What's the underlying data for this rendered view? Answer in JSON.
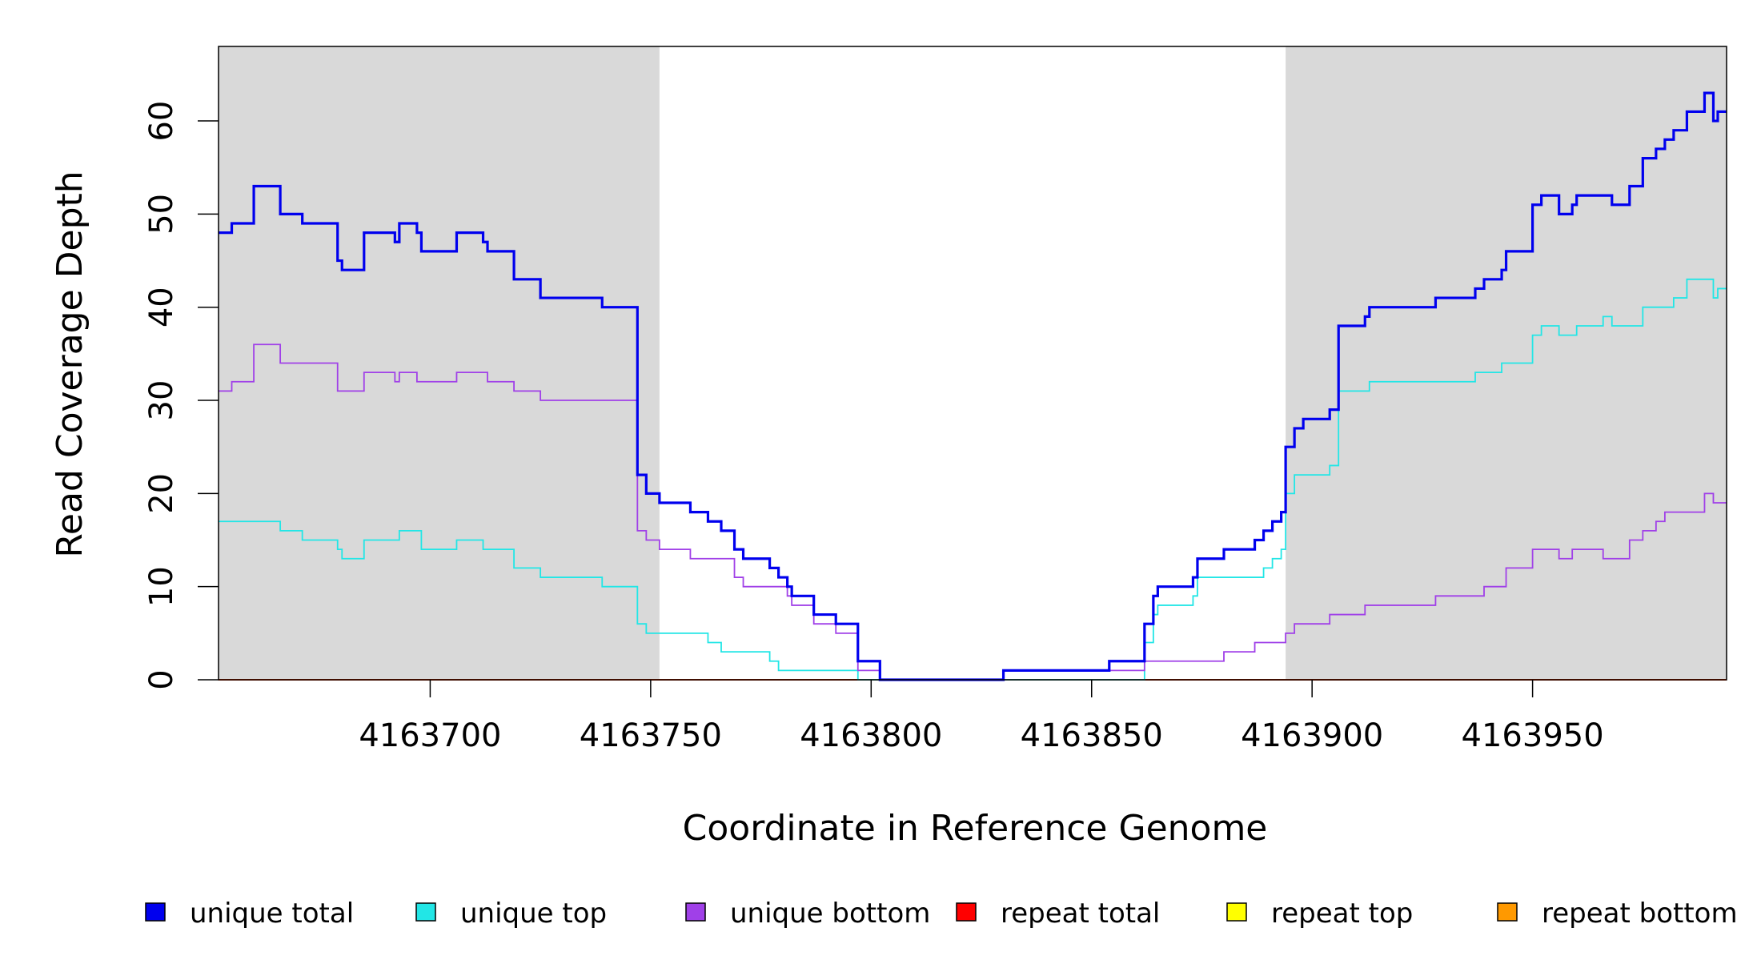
{
  "chart_data": {
    "type": "line",
    "xlabel": "Coordinate in Reference Genome",
    "ylabel": "Read Coverage Depth",
    "xlim": [
      4163652,
      4163994
    ],
    "ylim": [
      0,
      68
    ],
    "x_ticks": [
      4163700,
      4163750,
      4163800,
      4163850,
      4163900,
      4163950
    ],
    "x_tick_labels": [
      "4163700",
      "4163750",
      "4163800",
      "4163850",
      "4163900",
      "4163950"
    ],
    "y_ticks": [
      0,
      10,
      20,
      30,
      40,
      50,
      60
    ],
    "y_tick_labels": [
      "0",
      "10",
      "20",
      "30",
      "40",
      "50",
      "60"
    ],
    "shaded_regions": [
      {
        "from": 4163652,
        "to": 4163752,
        "color": "#d9d9d9"
      },
      {
        "from": 4163894,
        "to": 4163994,
        "color": "#d9d9d9"
      }
    ],
    "legend_position": "bottom",
    "series": [
      {
        "name": "unique total",
        "color": "#0000ee",
        "width": "bold",
        "steps": [
          [
            4163652,
            48
          ],
          [
            4163655,
            49
          ],
          [
            4163660,
            53
          ],
          [
            4163666,
            50
          ],
          [
            4163671,
            49
          ],
          [
            4163679,
            45
          ],
          [
            4163680,
            44
          ],
          [
            4163685,
            48
          ],
          [
            4163692,
            47
          ],
          [
            4163693,
            49
          ],
          [
            4163697,
            48
          ],
          [
            4163698,
            46
          ],
          [
            4163706,
            48
          ],
          [
            4163712,
            47
          ],
          [
            4163713,
            46
          ],
          [
            4163719,
            43
          ],
          [
            4163725,
            41
          ],
          [
            4163739,
            40
          ],
          [
            4163747,
            22
          ],
          [
            4163749,
            20
          ],
          [
            4163752,
            19
          ],
          [
            4163759,
            18
          ],
          [
            4163763,
            17
          ],
          [
            4163766,
            16
          ],
          [
            4163769,
            14
          ],
          [
            4163771,
            13
          ],
          [
            4163777,
            12
          ],
          [
            4163779,
            11
          ],
          [
            4163781,
            10
          ],
          [
            4163782,
            9
          ],
          [
            4163787,
            7
          ],
          [
            4163792,
            6
          ],
          [
            4163797,
            2
          ],
          [
            4163802,
            0
          ],
          [
            4163830,
            1
          ],
          [
            4163854,
            2
          ],
          [
            4163862,
            6
          ],
          [
            4163864,
            9
          ],
          [
            4163865,
            10
          ],
          [
            4163873,
            11
          ],
          [
            4163874,
            13
          ],
          [
            4163880,
            14
          ],
          [
            4163887,
            15
          ],
          [
            4163889,
            16
          ],
          [
            4163891,
            17
          ],
          [
            4163893,
            18
          ],
          [
            4163894,
            25
          ],
          [
            4163896,
            27
          ],
          [
            4163898,
            28
          ],
          [
            4163904,
            29
          ],
          [
            4163906,
            38
          ],
          [
            4163912,
            39
          ],
          [
            4163913,
            40
          ],
          [
            4163928,
            41
          ],
          [
            4163937,
            42
          ],
          [
            4163939,
            43
          ],
          [
            4163943,
            44
          ],
          [
            4163944,
            46
          ],
          [
            4163950,
            51
          ],
          [
            4163952,
            52
          ],
          [
            4163956,
            50
          ],
          [
            4163959,
            51
          ],
          [
            4163960,
            52
          ],
          [
            4163968,
            51
          ],
          [
            4163972,
            53
          ],
          [
            4163975,
            56
          ],
          [
            4163978,
            57
          ],
          [
            4163980,
            58
          ],
          [
            4163982,
            59
          ],
          [
            4163985,
            61
          ],
          [
            4163989,
            63
          ],
          [
            4163991,
            60
          ],
          [
            4163992,
            61
          ],
          [
            4163994,
            61
          ]
        ]
      },
      {
        "name": "unique top",
        "color": "#22e6e6",
        "width": "thin",
        "steps": [
          [
            4163652,
            17
          ],
          [
            4163666,
            16
          ],
          [
            4163671,
            15
          ],
          [
            4163679,
            14
          ],
          [
            4163680,
            13
          ],
          [
            4163685,
            15
          ],
          [
            4163693,
            16
          ],
          [
            4163698,
            14
          ],
          [
            4163706,
            15
          ],
          [
            4163712,
            14
          ],
          [
            4163719,
            12
          ],
          [
            4163725,
            11
          ],
          [
            4163739,
            10
          ],
          [
            4163747,
            6
          ],
          [
            4163749,
            5
          ],
          [
            4163763,
            4
          ],
          [
            4163766,
            3
          ],
          [
            4163777,
            2
          ],
          [
            4163779,
            1
          ],
          [
            4163797,
            0
          ],
          [
            4163862,
            4
          ],
          [
            4163864,
            7
          ],
          [
            4163865,
            8
          ],
          [
            4163873,
            9
          ],
          [
            4163874,
            11
          ],
          [
            4163889,
            12
          ],
          [
            4163891,
            13
          ],
          [
            4163893,
            14
          ],
          [
            4163894,
            20
          ],
          [
            4163896,
            22
          ],
          [
            4163904,
            23
          ],
          [
            4163906,
            31
          ],
          [
            4163913,
            32
          ],
          [
            4163937,
            33
          ],
          [
            4163943,
            34
          ],
          [
            4163950,
            37
          ],
          [
            4163952,
            38
          ],
          [
            4163956,
            37
          ],
          [
            4163960,
            38
          ],
          [
            4163966,
            39
          ],
          [
            4163968,
            38
          ],
          [
            4163975,
            40
          ],
          [
            4163982,
            41
          ],
          [
            4163985,
            43
          ],
          [
            4163991,
            41
          ],
          [
            4163992,
            42
          ],
          [
            4163994,
            42
          ]
        ]
      },
      {
        "name": "unique bottom",
        "color": "#a040e8",
        "width": "thin",
        "steps": [
          [
            4163652,
            31
          ],
          [
            4163655,
            32
          ],
          [
            4163660,
            36
          ],
          [
            4163666,
            34
          ],
          [
            4163679,
            31
          ],
          [
            4163685,
            33
          ],
          [
            4163692,
            32
          ],
          [
            4163693,
            33
          ],
          [
            4163697,
            32
          ],
          [
            4163706,
            33
          ],
          [
            4163713,
            32
          ],
          [
            4163719,
            31
          ],
          [
            4163725,
            30
          ],
          [
            4163747,
            16
          ],
          [
            4163749,
            15
          ],
          [
            4163752,
            14
          ],
          [
            4163759,
            13
          ],
          [
            4163769,
            11
          ],
          [
            4163771,
            10
          ],
          [
            4163781,
            9
          ],
          [
            4163782,
            8
          ],
          [
            4163787,
            6
          ],
          [
            4163792,
            5
          ],
          [
            4163797,
            1
          ],
          [
            4163802,
            0
          ],
          [
            4163830,
            1
          ],
          [
            4163862,
            2
          ],
          [
            4163880,
            3
          ],
          [
            4163887,
            4
          ],
          [
            4163894,
            5
          ],
          [
            4163896,
            6
          ],
          [
            4163904,
            7
          ],
          [
            4163912,
            8
          ],
          [
            4163928,
            9
          ],
          [
            4163939,
            10
          ],
          [
            4163944,
            12
          ],
          [
            4163950,
            14
          ],
          [
            4163956,
            13
          ],
          [
            4163959,
            14
          ],
          [
            4163966,
            13
          ],
          [
            4163972,
            15
          ],
          [
            4163975,
            16
          ],
          [
            4163978,
            17
          ],
          [
            4163980,
            18
          ],
          [
            4163989,
            20
          ],
          [
            4163991,
            19
          ],
          [
            4163994,
            19
          ]
        ]
      },
      {
        "name": "repeat total",
        "color": "#ff0000",
        "width": "thin",
        "steps": [
          [
            4163652,
            0
          ],
          [
            4163994,
            0
          ]
        ]
      },
      {
        "name": "repeat top",
        "color": "#ffff00",
        "width": "thin",
        "steps": [
          [
            4163652,
            0
          ],
          [
            4163994,
            0
          ]
        ]
      },
      {
        "name": "repeat bottom",
        "color": "#ff9900",
        "width": "thin",
        "steps": [
          [
            4163652,
            0
          ],
          [
            4163994,
            0
          ]
        ]
      }
    ]
  }
}
